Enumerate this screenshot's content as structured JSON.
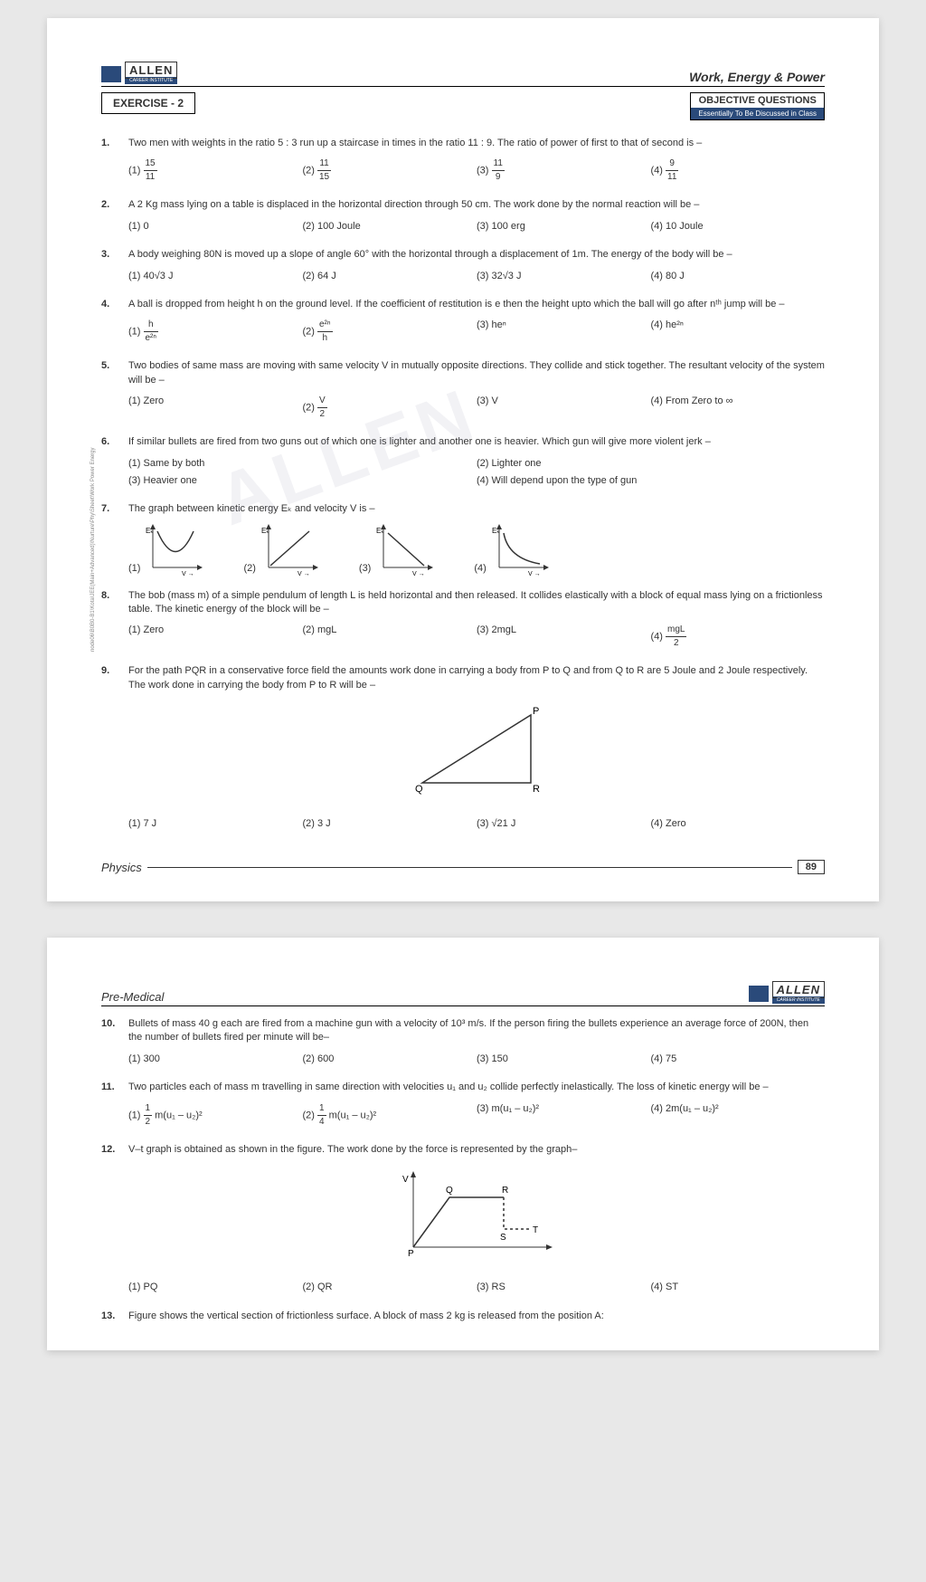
{
  "brand": {
    "name": "ALLEN",
    "sub": "CAREER INSTITUTE"
  },
  "chapter": "Work, Energy & Power",
  "exercise": "EXERCISE - 2",
  "objective": {
    "title": "OBJECTIVE QUESTIONS",
    "sub": "Essentially To Be Discussed in Class"
  },
  "footer": {
    "subject": "Physics",
    "page": "89",
    "pre": "Pre-Medical"
  },
  "watermark": "ALLEN",
  "side": "node06\\B0B0-B1\\Kota\\JEE(Main+Advanced)\\Nurture\\Phy\\Sheet\\Work Power Energy",
  "q": [
    {
      "n": "1.",
      "t": "Two men with weights in the ratio 5 : 3 run up a staircase in times in the ratio 11 : 9. The ratio of power of first to that of second is –",
      "o": [
        {
          "l": "(1)",
          "fn": "15",
          "fd": "11"
        },
        {
          "l": "(2)",
          "fn": "11",
          "fd": "15"
        },
        {
          "l": "(3)",
          "fn": "11",
          "fd": "9"
        },
        {
          "l": "(4)",
          "fn": "9",
          "fd": "11"
        }
      ]
    },
    {
      "n": "2.",
      "t": "A 2 Kg mass lying on a table is displaced in the horizontal direction through 50 cm. The work done by the normal reaction will be –",
      "o": [
        {
          "l": "(1) 0"
        },
        {
          "l": "(2) 100 Joule"
        },
        {
          "l": "(3) 100 erg"
        },
        {
          "l": "(4) 10 Joule"
        }
      ]
    },
    {
      "n": "3.",
      "t": "A body weighing 80N is moved up a slope of angle 60° with the horizontal through a displacement of 1m. The energy of the body will be –",
      "o": [
        {
          "l": "(1) 40√3 J"
        },
        {
          "l": "(2) 64 J"
        },
        {
          "l": "(3) 32√3 J"
        },
        {
          "l": "(4) 80 J"
        }
      ]
    },
    {
      "n": "4.",
      "t": "A ball is dropped from height h on the ground level. If the coefficient of restitution is e then the height upto which the ball will go after nᵗʰ jump will be –",
      "o": [
        {
          "l": "(1)",
          "fn": "h",
          "fd": "e²ⁿ"
        },
        {
          "l": "(2)",
          "fn": "e²ⁿ",
          "fd": "h"
        },
        {
          "l": "(3) heⁿ"
        },
        {
          "l": "(4) he²ⁿ"
        }
      ]
    },
    {
      "n": "5.",
      "t": "Two bodies of same mass are moving with same velocity V in mutually opposite directions. They collide and stick together. The resultant velocity of the system will be –",
      "o": [
        {
          "l": "(1) Zero"
        },
        {
          "l": "(2)",
          "fn": "V",
          "fd": "2"
        },
        {
          "l": "(3) V"
        },
        {
          "l": "(4) From Zero to ∞"
        }
      ]
    },
    {
      "n": "6.",
      "t": "If similar bullets are fired from two guns out of which one is lighter and another one is heavier. Which gun will give more violent jerk –",
      "o2": [
        {
          "l": "(1) Same by both"
        },
        {
          "l": "(2) Lighter one"
        },
        {
          "l": "(3) Heavier one"
        },
        {
          "l": "(4) Will depend upon the type of gun"
        }
      ]
    },
    {
      "n": "7.",
      "t": "The graph between kinetic energy Eₖ and velocity V is –",
      "graphs": true,
      "go": [
        "(1)",
        "(2)",
        "(3)",
        "(4)"
      ],
      "axis": {
        "y": "Eₖ",
        "x": "V →"
      }
    },
    {
      "n": "8.",
      "t": "The bob (mass m) of a simple pendulum of length L is held horizontal and then released. It collides elastically with a block of equal mass lying on a frictionless table. The kinetic energy of the block will be –",
      "o": [
        {
          "l": "(1) Zero"
        },
        {
          "l": "(2) mgL"
        },
        {
          "l": "(3) 2mgL"
        },
        {
          "l": "(4)",
          "fn": "mgL",
          "fd": "2"
        }
      ]
    },
    {
      "n": "9.",
      "t": "For the path PQR in a conservative force field the amounts work done in carrying a body from P to Q and from Q to R are 5 Joule and 2 Joule respectively. The work done in carrying the body from P to R will be –",
      "tri": {
        "P": "P",
        "Q": "Q",
        "R": "R"
      },
      "o": [
        {
          "l": "(1) 7 J"
        },
        {
          "l": "(2) 3 J"
        },
        {
          "l": "(3) √21 J"
        },
        {
          "l": "(4) Zero"
        }
      ]
    }
  ],
  "q2": [
    {
      "n": "10.",
      "t": "Bullets of mass 40 g each are fired from a machine gun with a velocity of 10³ m/s. If the person firing the bullets experience an average force of 200N, then the number of bullets fired per minute will be–",
      "o": [
        {
          "l": "(1) 300"
        },
        {
          "l": "(2) 600"
        },
        {
          "l": "(3) 150"
        },
        {
          "l": "(4) 75"
        }
      ]
    },
    {
      "n": "11.",
      "t": "Two particles each of mass m travelling in same direction with velocities u₁ and u₂ collide perfectly inelastically. The loss of kinetic energy will be –",
      "o": [
        {
          "l": "(1)",
          "fn": "1",
          "fd": "2",
          "suf": " m(u₁ – u₂)²"
        },
        {
          "l": "(2)",
          "fn": "1",
          "fd": "4",
          "suf": " m(u₁ – u₂)²"
        },
        {
          "l": "(3) m(u₁ – u₂)²"
        },
        {
          "l": "(4) 2m(u₁ – u₂)²"
        }
      ]
    },
    {
      "n": "12.",
      "t": "V–t graph is obtained as shown in the figure. The work done by the force is represented by the graph–",
      "vt": {
        "P": "P",
        "Q": "Q",
        "R": "R",
        "S": "S",
        "T": "T",
        "V": "V"
      },
      "o": [
        {
          "l": "(1) PQ"
        },
        {
          "l": "(2) QR"
        },
        {
          "l": "(3) RS"
        },
        {
          "l": "(4) ST"
        }
      ]
    },
    {
      "n": "13.",
      "t": "Figure shows the vertical section of frictionless surface. A block of mass 2 kg is released from the position A:"
    }
  ]
}
